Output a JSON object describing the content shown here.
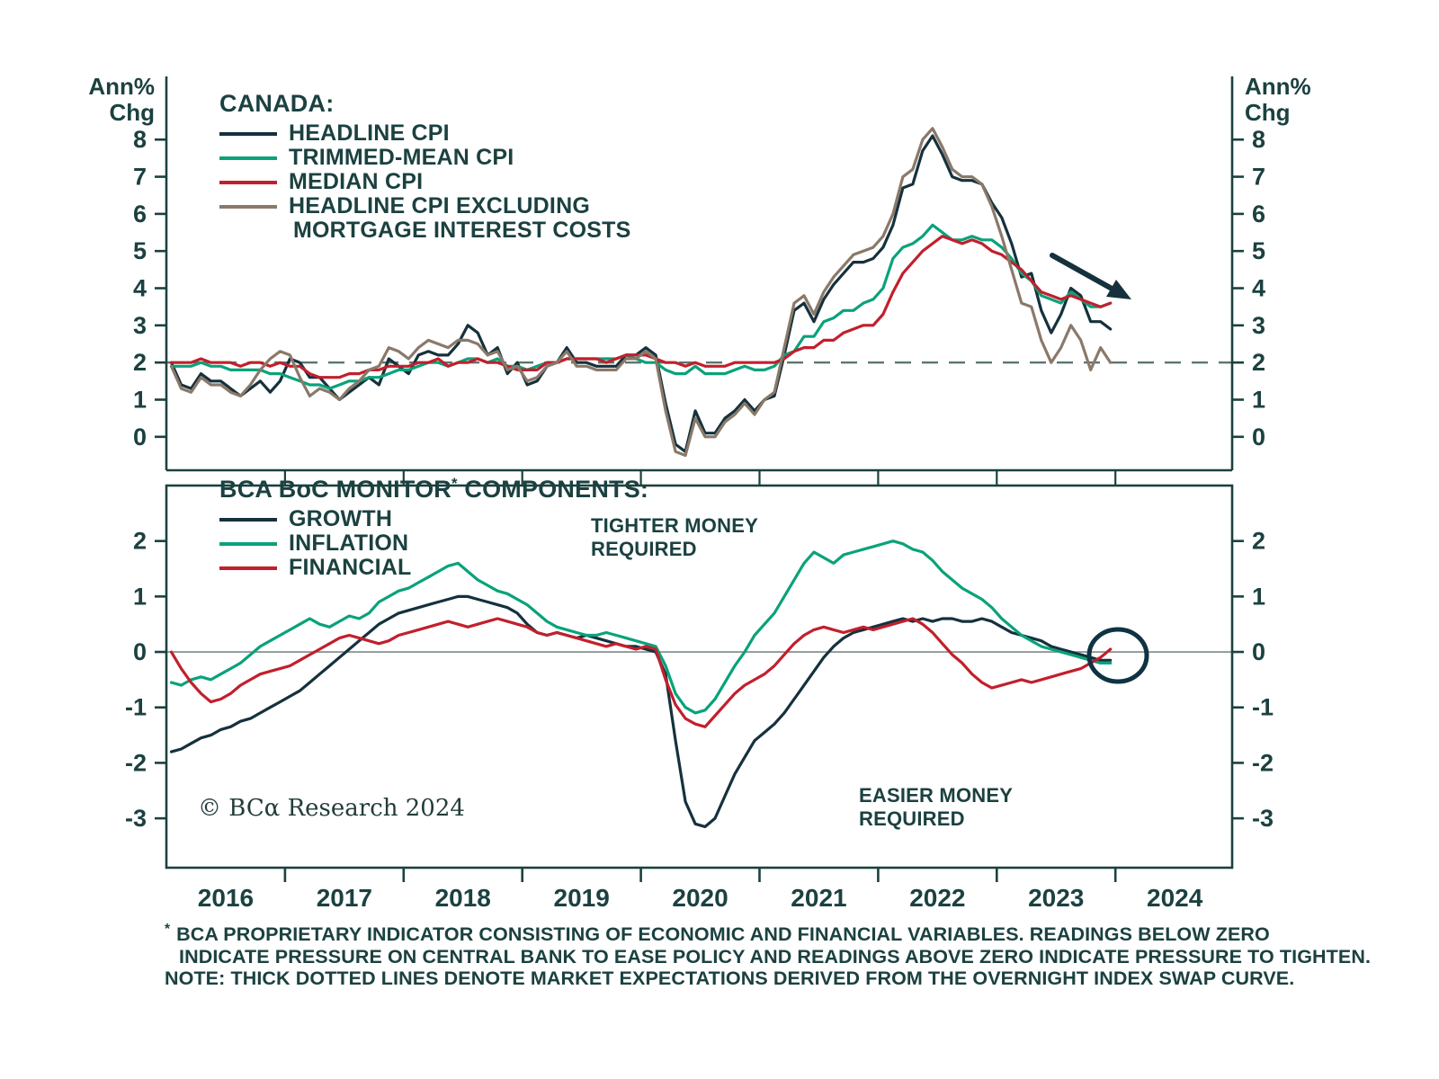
{
  "axis_units": {
    "line1": "Ann%",
    "line2": "Chg"
  },
  "top_legend": {
    "heading": "CANADA:",
    "items": [
      {
        "label": "HEADLINE CPI"
      },
      {
        "label": "TRIMMED-MEAN CPI"
      },
      {
        "label": "MEDIAN CPI"
      },
      {
        "label": "HEADLINE CPI EXCLUDING",
        "label2": "MORTGAGE INTEREST COSTS"
      }
    ]
  },
  "bottom_legend": {
    "heading_pre": "BCA BoC MONITOR",
    "heading_sup": "*",
    "heading_post": " COMPONENTS:",
    "items": [
      {
        "label": "GROWTH"
      },
      {
        "label": "INFLATION"
      },
      {
        "label": "FINANCIAL"
      }
    ]
  },
  "annotations": {
    "tighter_line1": "TIGHTER MONEY",
    "tighter_line2": "REQUIRED",
    "easier_line1": "EASIER MONEY",
    "easier_line2": "REQUIRED",
    "copyright": "© BCα Research 2024"
  },
  "footnotes": {
    "marker": "*",
    "line1": "BCA PROPRIETARY INDICATOR CONSISTING OF ECONOMIC AND FINANCIAL VARIABLES. READINGS BELOW ZERO",
    "line2": "INDICATE PRESSURE ON CENTRAL BANK TO EASE POLICY AND READINGS ABOVE ZERO INDICATE PRESSURE TO TIGHTEN.",
    "line3": "NOTE: THICK DOTTED LINES DENOTE MARKET EXPECTATIONS DERIVED FROM THE OVERNIGHT INDEX SWAP CURVE."
  },
  "chart_data": [
    {
      "type": "line",
      "title": "CANADA:",
      "ylabel": "Ann% Chg",
      "x_start_year": 2016,
      "x_frequency": "monthly",
      "xlim": [
        2016.0,
        2024.98
      ],
      "ylim": [
        -0.9,
        9.7
      ],
      "yticks": [
        0,
        1,
        2,
        3,
        4,
        5,
        6,
        7,
        8
      ],
      "xtick_labels": [
        "2016",
        "2017",
        "2018",
        "2019",
        "2020",
        "2021",
        "2022",
        "2023",
        "2024"
      ],
      "reference_line": 2,
      "grid": false,
      "legend_position": "top-left-inside",
      "series": [
        {
          "name": "HEADLINE CPI",
          "color": "#15313d",
          "values": [
            2.0,
            1.4,
            1.3,
            1.7,
            1.5,
            1.5,
            1.3,
            1.1,
            1.3,
            1.5,
            1.2,
            1.5,
            2.1,
            2.0,
            1.6,
            1.6,
            1.3,
            1.0,
            1.2,
            1.4,
            1.6,
            1.4,
            2.1,
            1.9,
            1.7,
            2.2,
            2.3,
            2.2,
            2.2,
            2.5,
            3.0,
            2.8,
            2.2,
            2.4,
            1.7,
            2.0,
            1.4,
            1.5,
            1.9,
            2.0,
            2.4,
            2.0,
            2.0,
            1.9,
            1.9,
            1.9,
            2.2,
            2.2,
            2.4,
            2.2,
            0.9,
            -0.2,
            -0.4,
            0.7,
            0.1,
            0.1,
            0.5,
            0.7,
            1.0,
            0.7,
            1.0,
            1.1,
            2.2,
            3.4,
            3.6,
            3.1,
            3.7,
            4.1,
            4.4,
            4.7,
            4.7,
            4.8,
            5.1,
            5.7,
            6.7,
            6.8,
            7.7,
            8.1,
            7.6,
            7.0,
            6.9,
            6.9,
            6.8,
            6.3,
            5.9,
            5.2,
            4.3,
            4.4,
            3.4,
            2.8,
            3.3,
            4.0,
            3.8,
            3.1,
            3.1,
            2.9
          ]
        },
        {
          "name": "TRIMMED-MEAN CPI",
          "color": "#0aa27a",
          "values": [
            1.9,
            1.9,
            1.9,
            2.0,
            1.9,
            1.9,
            1.8,
            1.8,
            1.8,
            1.8,
            1.7,
            1.7,
            1.6,
            1.5,
            1.4,
            1.4,
            1.3,
            1.4,
            1.5,
            1.5,
            1.6,
            1.6,
            1.7,
            1.8,
            1.8,
            1.9,
            2.0,
            2.0,
            1.9,
            2.0,
            2.1,
            2.1,
            2.0,
            2.1,
            1.9,
            1.9,
            1.8,
            1.9,
            2.0,
            2.0,
            2.1,
            2.1,
            2.1,
            2.1,
            2.1,
            2.1,
            2.2,
            2.1,
            2.0,
            2.0,
            1.8,
            1.7,
            1.7,
            1.9,
            1.7,
            1.7,
            1.7,
            1.8,
            1.9,
            1.8,
            1.8,
            1.9,
            2.2,
            2.3,
            2.7,
            2.7,
            3.1,
            3.2,
            3.4,
            3.4,
            3.6,
            3.7,
            4.0,
            4.8,
            5.1,
            5.2,
            5.4,
            5.7,
            5.5,
            5.3,
            5.3,
            5.4,
            5.3,
            5.3,
            5.1,
            4.8,
            4.4,
            4.2,
            3.8,
            3.7,
            3.6,
            3.9,
            3.7,
            3.5,
            3.5,
            3.6
          ]
        },
        {
          "name": "MEDIAN CPI",
          "color": "#c21f2c",
          "values": [
            2.0,
            2.0,
            2.0,
            2.1,
            2.0,
            2.0,
            2.0,
            1.9,
            2.0,
            2.0,
            1.9,
            2.0,
            1.9,
            1.9,
            1.7,
            1.6,
            1.6,
            1.6,
            1.7,
            1.7,
            1.8,
            1.8,
            1.9,
            1.9,
            1.9,
            2.0,
            2.0,
            2.1,
            1.9,
            2.0,
            2.0,
            2.1,
            2.0,
            2.0,
            1.9,
            1.8,
            1.8,
            1.8,
            2.0,
            2.0,
            2.1,
            2.1,
            2.1,
            2.1,
            2.0,
            2.1,
            2.2,
            2.2,
            2.2,
            2.1,
            2.0,
            2.0,
            1.9,
            2.0,
            1.9,
            1.9,
            1.9,
            2.0,
            2.0,
            2.0,
            2.0,
            2.0,
            2.1,
            2.3,
            2.4,
            2.4,
            2.6,
            2.6,
            2.8,
            2.9,
            3.0,
            3.0,
            3.3,
            3.9,
            4.4,
            4.7,
            5.0,
            5.2,
            5.4,
            5.3,
            5.2,
            5.3,
            5.2,
            5.0,
            4.9,
            4.7,
            4.5,
            4.2,
            3.9,
            3.8,
            3.7,
            3.8,
            3.7,
            3.6,
            3.5,
            3.6
          ]
        },
        {
          "name": "HEADLINE CPI EXCLUDING MORTGAGE INTEREST COSTS",
          "color": "#8a7969",
          "values": [
            1.9,
            1.3,
            1.2,
            1.6,
            1.4,
            1.4,
            1.2,
            1.1,
            1.4,
            1.8,
            2.1,
            2.3,
            2.2,
            1.6,
            1.1,
            1.3,
            1.2,
            1.0,
            1.3,
            1.5,
            1.8,
            1.9,
            2.4,
            2.3,
            2.1,
            2.4,
            2.6,
            2.5,
            2.4,
            2.6,
            2.6,
            2.5,
            2.2,
            2.3,
            1.8,
            1.9,
            1.5,
            1.6,
            1.9,
            2.0,
            2.3,
            1.9,
            1.9,
            1.8,
            1.8,
            1.8,
            2.1,
            2.1,
            2.3,
            2.1,
            0.7,
            -0.4,
            -0.5,
            0.5,
            0.0,
            0.0,
            0.4,
            0.6,
            0.9,
            0.6,
            1.0,
            1.2,
            2.4,
            3.6,
            3.8,
            3.3,
            3.9,
            4.3,
            4.6,
            4.9,
            5.0,
            5.1,
            5.4,
            6.0,
            7.0,
            7.2,
            8.0,
            8.3,
            7.8,
            7.2,
            7.0,
            7.0,
            6.8,
            6.2,
            5.4,
            4.5,
            3.6,
            3.5,
            2.6,
            2.0,
            2.4,
            3.0,
            2.6,
            1.8,
            2.4,
            2.0
          ]
        }
      ]
    },
    {
      "type": "line",
      "title": "BCA BoC MONITOR* COMPONENTS:",
      "x_start_year": 2016,
      "x_frequency": "monthly",
      "xlim": [
        2016.0,
        2024.98
      ],
      "ylim": [
        -3.89,
        3.0
      ],
      "yticks": [
        -3,
        -2,
        -1,
        0,
        1,
        2
      ],
      "xtick_labels": [
        "2016",
        "2017",
        "2018",
        "2019",
        "2020",
        "2021",
        "2022",
        "2023",
        "2024"
      ],
      "reference_line": 0,
      "grid": false,
      "legend_position": "top-left-inside",
      "annotations": [
        "TIGHTER MONEY REQUIRED",
        "EASIER MONEY REQUIRED"
      ],
      "series": [
        {
          "name": "GROWTH",
          "color": "#15313d",
          "values": [
            -1.8,
            -1.75,
            -1.65,
            -1.55,
            -1.5,
            -1.4,
            -1.35,
            -1.25,
            -1.2,
            -1.1,
            -1.0,
            -0.9,
            -0.8,
            -0.7,
            -0.55,
            -0.4,
            -0.25,
            -0.1,
            0.05,
            0.2,
            0.35,
            0.5,
            0.6,
            0.7,
            0.75,
            0.8,
            0.85,
            0.9,
            0.95,
            1.0,
            1.0,
            0.95,
            0.9,
            0.85,
            0.8,
            0.7,
            0.5,
            0.35,
            0.3,
            0.35,
            0.3,
            0.25,
            0.3,
            0.25,
            0.2,
            0.15,
            0.1,
            0.1,
            0.05,
            0.0,
            -0.4,
            -1.6,
            -2.7,
            -3.1,
            -3.15,
            -3.0,
            -2.6,
            -2.2,
            -1.9,
            -1.6,
            -1.45,
            -1.3,
            -1.1,
            -0.85,
            -0.6,
            -0.35,
            -0.1,
            0.1,
            0.25,
            0.35,
            0.4,
            0.45,
            0.5,
            0.55,
            0.6,
            0.55,
            0.6,
            0.55,
            0.6,
            0.6,
            0.55,
            0.55,
            0.6,
            0.55,
            0.45,
            0.35,
            0.3,
            0.25,
            0.2,
            0.1,
            0.05,
            0.0,
            -0.05,
            -0.1,
            -0.15,
            -0.15
          ]
        },
        {
          "name": "INFLATION",
          "color": "#0aa27a",
          "values": [
            -0.55,
            -0.6,
            -0.5,
            -0.45,
            -0.5,
            -0.4,
            -0.3,
            -0.2,
            -0.05,
            0.1,
            0.2,
            0.3,
            0.4,
            0.5,
            0.6,
            0.5,
            0.45,
            0.55,
            0.65,
            0.6,
            0.7,
            0.9,
            1.0,
            1.1,
            1.15,
            1.25,
            1.35,
            1.45,
            1.55,
            1.6,
            1.45,
            1.3,
            1.2,
            1.1,
            1.05,
            0.95,
            0.85,
            0.7,
            0.55,
            0.45,
            0.4,
            0.35,
            0.3,
            0.3,
            0.35,
            0.3,
            0.25,
            0.2,
            0.15,
            0.1,
            -0.25,
            -0.75,
            -1.0,
            -1.1,
            -1.05,
            -0.85,
            -0.55,
            -0.25,
            0.0,
            0.3,
            0.5,
            0.7,
            1.0,
            1.3,
            1.6,
            1.8,
            1.7,
            1.6,
            1.75,
            1.8,
            1.85,
            1.9,
            1.95,
            2.0,
            1.95,
            1.85,
            1.8,
            1.65,
            1.45,
            1.3,
            1.15,
            1.05,
            0.95,
            0.8,
            0.6,
            0.45,
            0.3,
            0.2,
            0.1,
            0.05,
            0.0,
            -0.05,
            -0.1,
            -0.15,
            -0.2,
            -0.2
          ]
        },
        {
          "name": "FINANCIAL",
          "color": "#c21f2c",
          "values": [
            0.0,
            -0.3,
            -0.55,
            -0.75,
            -0.9,
            -0.85,
            -0.75,
            -0.6,
            -0.5,
            -0.4,
            -0.35,
            -0.3,
            -0.25,
            -0.15,
            -0.05,
            0.05,
            0.15,
            0.25,
            0.3,
            0.25,
            0.2,
            0.15,
            0.2,
            0.3,
            0.35,
            0.4,
            0.45,
            0.5,
            0.55,
            0.5,
            0.45,
            0.5,
            0.55,
            0.6,
            0.55,
            0.5,
            0.45,
            0.35,
            0.3,
            0.35,
            0.3,
            0.25,
            0.2,
            0.15,
            0.1,
            0.15,
            0.1,
            0.05,
            0.1,
            0.05,
            -0.5,
            -0.95,
            -1.2,
            -1.3,
            -1.35,
            -1.15,
            -0.95,
            -0.75,
            -0.6,
            -0.5,
            -0.4,
            -0.25,
            -0.05,
            0.15,
            0.3,
            0.4,
            0.45,
            0.4,
            0.35,
            0.4,
            0.45,
            0.4,
            0.45,
            0.5,
            0.55,
            0.6,
            0.5,
            0.35,
            0.15,
            -0.05,
            -0.2,
            -0.4,
            -0.55,
            -0.65,
            -0.6,
            -0.55,
            -0.5,
            -0.55,
            -0.5,
            -0.45,
            -0.4,
            -0.35,
            -0.3,
            -0.2,
            -0.1,
            0.05
          ]
        }
      ]
    }
  ]
}
